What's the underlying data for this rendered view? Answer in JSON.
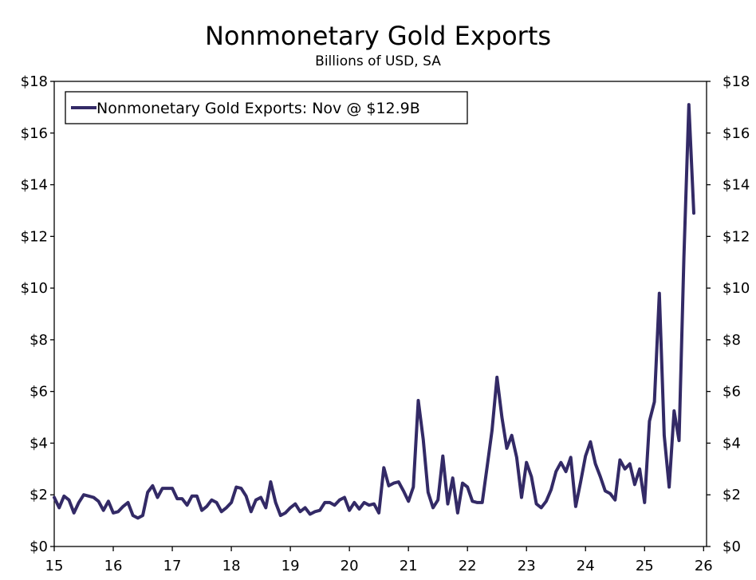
{
  "chart_data": {
    "type": "line",
    "title": "Nonmonetary Gold Exports",
    "subtitle": "Billions of USD, SA",
    "xlabel": "",
    "ylabel": "",
    "x_tick_labels": [
      "15",
      "16",
      "17",
      "18",
      "19",
      "20",
      "21",
      "22",
      "23",
      "24",
      "25",
      "26"
    ],
    "y_tick_labels": [
      "$0",
      "$2",
      "$4",
      "$6",
      "$8",
      "$10",
      "$12",
      "$14",
      "$16",
      "$18"
    ],
    "ylim": [
      0,
      18
    ],
    "y_ticks": [
      0,
      2,
      4,
      6,
      8,
      10,
      12,
      14,
      16,
      18
    ],
    "xlim": [
      2015,
      2026.05
    ],
    "grid": false,
    "legend_position": "top-left",
    "series_color": "#332a66",
    "series": [
      {
        "name": "Nonmonetary Gold Exports: Nov @ $12.9B",
        "start": "2015-01",
        "end": "2025-11",
        "values": [
          1.9,
          1.5,
          1.95,
          1.8,
          1.3,
          1.7,
          2.0,
          1.95,
          1.9,
          1.75,
          1.4,
          1.75,
          1.3,
          1.35,
          1.55,
          1.7,
          1.2,
          1.1,
          1.2,
          2.1,
          2.35,
          1.9,
          2.25,
          2.25,
          2.25,
          1.85,
          1.85,
          1.6,
          1.95,
          1.95,
          1.4,
          1.55,
          1.8,
          1.7,
          1.35,
          1.5,
          1.7,
          2.3,
          2.25,
          1.95,
          1.35,
          1.8,
          1.9,
          1.5,
          2.5,
          1.7,
          1.2,
          1.3,
          1.5,
          1.65,
          1.35,
          1.5,
          1.25,
          1.35,
          1.4,
          1.7,
          1.7,
          1.6,
          1.8,
          1.9,
          1.4,
          1.7,
          1.45,
          1.7,
          1.6,
          1.65,
          1.3,
          3.05,
          2.35,
          2.45,
          2.5,
          2.15,
          1.75,
          2.3,
          5.65,
          4.15,
          2.1,
          1.5,
          1.8,
          3.5,
          1.65,
          2.65,
          1.3,
          2.45,
          2.3,
          1.75,
          1.7,
          1.7,
          3.1,
          4.5,
          6.55,
          5.0,
          3.8,
          4.3,
          3.45,
          1.9,
          3.25,
          2.7,
          1.65,
          1.5,
          1.75,
          2.2,
          2.9,
          3.25,
          2.9,
          3.45,
          1.55,
          2.5,
          3.5,
          4.05,
          3.2,
          2.7,
          2.15,
          2.05,
          1.8,
          3.35,
          3.0,
          3.2,
          2.4,
          3.0,
          1.7,
          4.85,
          5.6,
          9.8,
          4.3,
          2.3,
          5.25,
          4.1,
          11.2,
          17.1,
          12.9
        ]
      }
    ]
  }
}
